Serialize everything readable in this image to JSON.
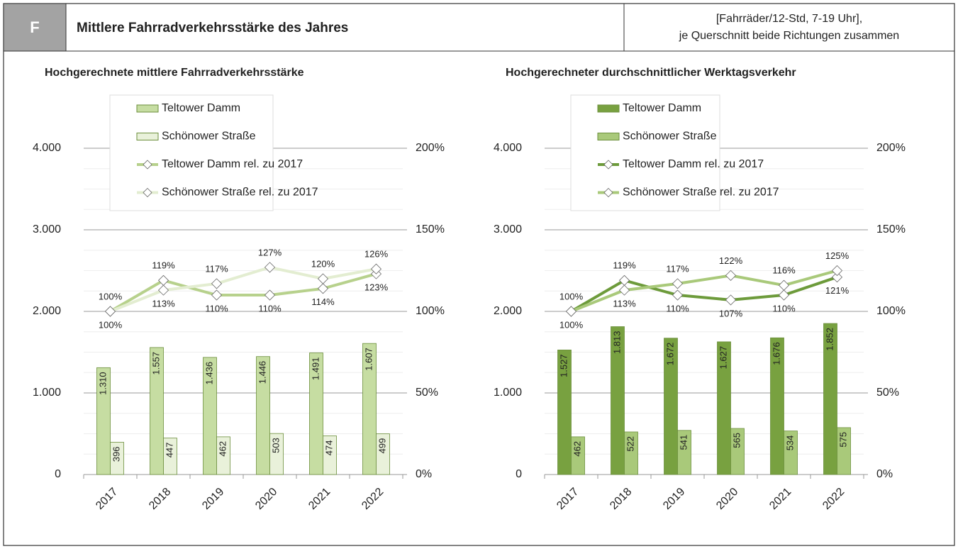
{
  "header": {
    "letter": "F",
    "title": "Mittlere Fahrradverkehrsstärke des Jahres",
    "units": [
      "[Fahrräder/12-Std, 7-19 Uhr],",
      "je Querschnitt beide Richtungen zusammen"
    ]
  },
  "chart_data": [
    {
      "type": "combo",
      "title": "Hochgerechnete mittlere Fahrradverkehrsstärke",
      "categories": [
        "2017",
        "2018",
        "2019",
        "2020",
        "2021",
        "2022"
      ],
      "series": [
        {
          "name": "Teltower Damm",
          "type": "bar",
          "color": "#c6dda2",
          "values": [
            1310,
            1557,
            1436,
            1446,
            1491,
            1607
          ],
          "value_labels": [
            "1.310",
            "1.557",
            "1.436",
            "1.446",
            "1.491",
            "1.607"
          ]
        },
        {
          "name": "Schönower Straße",
          "type": "bar",
          "color": "#e9f1da",
          "values": [
            396,
            447,
            462,
            503,
            474,
            499
          ]
        },
        {
          "name": "Teltower Damm rel. zu 2017",
          "type": "line",
          "axis": "y2",
          "color": "#b7d18c",
          "values": [
            100,
            119,
            110,
            110,
            114,
            123
          ],
          "value_labels": [
            "100%",
            "119%",
            "110%",
            "110%",
            "114%",
            "123%"
          ]
        },
        {
          "name": "Schönower Straße rel. zu 2017",
          "type": "line",
          "axis": "y2",
          "color": "#e3edd1",
          "values": [
            100,
            113,
            117,
            127,
            120,
            126
          ],
          "value_labels": [
            "100%",
            "113%",
            "117%",
            "127%",
            "120%",
            "126%"
          ]
        }
      ],
      "ylim": [
        0,
        4600
      ],
      "yticks": [
        0,
        {
          "value": 1000,
          "label": "1.000"
        },
        {
          "value": 2000,
          "label": "2.000"
        },
        {
          "value": 3000,
          "label": "3.000"
        },
        {
          "value": 4000,
          "label": "4.000"
        }
      ],
      "y2lim": [
        0,
        230
      ],
      "y2ticks": [
        {
          "value": 0,
          "label": "0%"
        },
        {
          "value": 50,
          "label": "50%"
        },
        {
          "value": 100,
          "label": "100%"
        },
        {
          "value": 150,
          "label": "150%"
        },
        {
          "value": 200,
          "label": "200%"
        }
      ],
      "grid": true
    },
    {
      "type": "combo",
      "title": "Hochgerechneter durchschnittlicher Werktagsverkehr",
      "categories": [
        "2017",
        "2018",
        "2019",
        "2020",
        "2021",
        "2022"
      ],
      "series": [
        {
          "name": "Teltower Damm",
          "type": "bar",
          "color": "#78a140",
          "values": [
            1527,
            1813,
            1672,
            1627,
            1676,
            1852
          ],
          "value_labels": [
            "1.527",
            "1.813",
            "1.672",
            "1.627",
            "1.676",
            "1.852"
          ]
        },
        {
          "name": "Schönower Straße",
          "type": "bar",
          "color": "#a9c97a",
          "values": [
            462,
            522,
            541,
            565,
            534,
            575
          ]
        },
        {
          "name": "Teltower Damm rel. zu 2017",
          "type": "line",
          "axis": "y2",
          "color": "#6d9b3b",
          "values": [
            100,
            119,
            110,
            107,
            110,
            121
          ],
          "value_labels": [
            "100%",
            "119%",
            "110%",
            "107%",
            "110%",
            "121%"
          ]
        },
        {
          "name": "Schönower Straße rel. zu 2017",
          "type": "line",
          "axis": "y2",
          "color": "#a9c97a",
          "values": [
            100,
            113,
            117,
            122,
            116,
            125
          ],
          "value_labels": [
            "100%",
            "113%",
            "117%",
            "122%",
            "116%",
            "125%"
          ]
        }
      ],
      "ylim": [
        0,
        4600
      ],
      "yticks": [
        0,
        {
          "value": 1000,
          "label": "1.000"
        },
        {
          "value": 2000,
          "label": "2.000"
        },
        {
          "value": 3000,
          "label": "3.000"
        },
        {
          "value": 4000,
          "label": "4.000"
        }
      ],
      "y2lim": [
        0,
        230
      ],
      "y2ticks": [
        {
          "value": 0,
          "label": "0%"
        },
        {
          "value": 50,
          "label": "50%"
        },
        {
          "value": 100,
          "label": "100%"
        },
        {
          "value": 150,
          "label": "150%"
        },
        {
          "value": 200,
          "label": "200%"
        }
      ],
      "grid": true
    }
  ]
}
